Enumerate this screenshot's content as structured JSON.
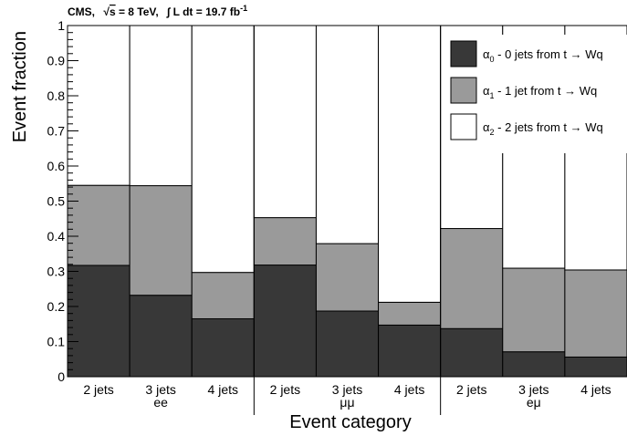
{
  "header": {
    "experiment": "CMS,",
    "energy_prefix": "s",
    "energy_value": " = 8 TeV,",
    "lumi_integral": "∫",
    "lumi_text": " L dt = 19.7 fb",
    "lumi_exp": "-1"
  },
  "chart_data": {
    "type": "bar",
    "ylabel": "Event fraction",
    "xlabel": "Event category",
    "ylim": [
      0,
      1
    ],
    "yticks": [
      "0",
      "0.1",
      "0.2",
      "0.3",
      "0.4",
      "0.5",
      "0.6",
      "0.7",
      "0.8",
      "0.9",
      "1"
    ],
    "groups": [
      {
        "name": "ee",
        "categories": [
          "2 jets",
          "3 jets",
          "4 jets"
        ]
      },
      {
        "name": "μμ",
        "categories": [
          "2 jets",
          "3 jets",
          "4 jets"
        ]
      },
      {
        "name": "eμ",
        "categories": [
          "2 jets",
          "3 jets",
          "4 jets"
        ]
      }
    ],
    "series": [
      {
        "name_main": "α",
        "name_sub": "0",
        "name_rest": " - 0 jets from t → Wq",
        "color": "#383838",
        "values": [
          0.317,
          0.232,
          0.165,
          0.318,
          0.187,
          0.147,
          0.137,
          0.071,
          0.056
        ]
      },
      {
        "name_main": "α",
        "name_sub": "1",
        "name_rest": " - 1 jet from t → Wq",
        "color": "#9a9a9a",
        "values": [
          0.228,
          0.312,
          0.132,
          0.135,
          0.192,
          0.065,
          0.285,
          0.238,
          0.248
        ]
      },
      {
        "name_main": "α",
        "name_sub": "2",
        "name_rest": " - 2 jets from t → Wq",
        "color": "#ffffff",
        "values": [
          0.455,
          0.456,
          0.703,
          0.547,
          0.621,
          0.788,
          0.578,
          0.691,
          0.696
        ]
      }
    ],
    "legend_position": "top-right",
    "grid": false
  }
}
